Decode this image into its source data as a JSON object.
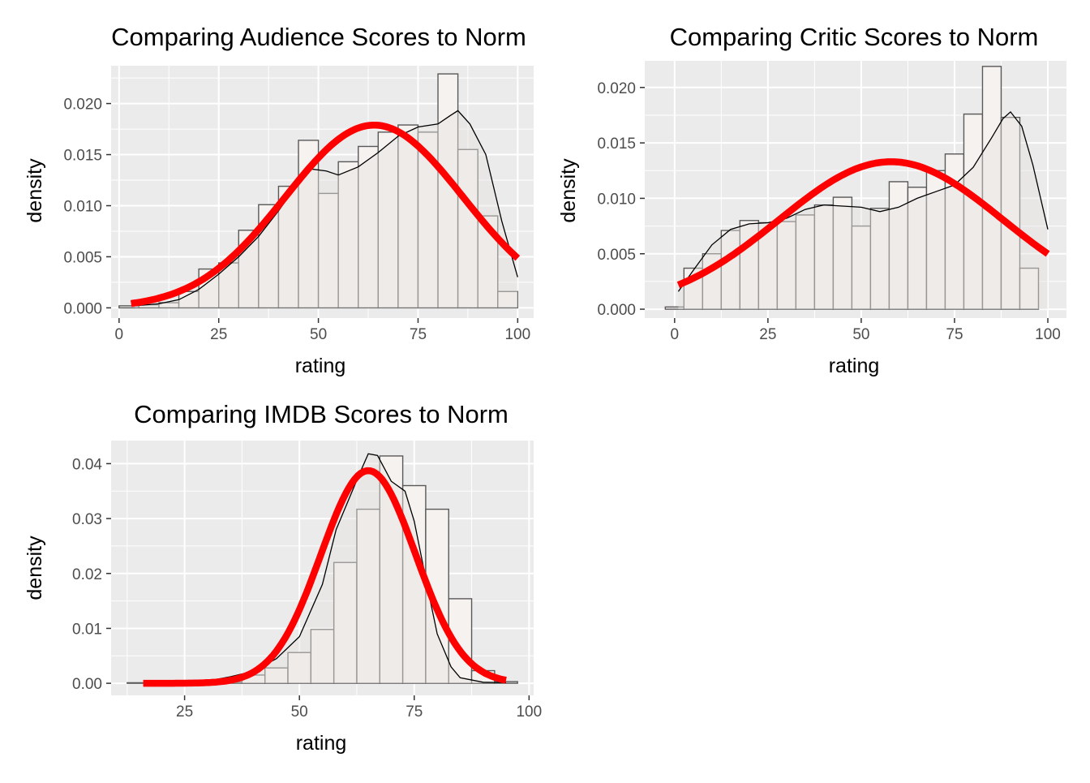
{
  "colors": {
    "panel_bg": "#EBEBEB",
    "grid": "#FFFFFF",
    "bar_fill": "#F5F2EF",
    "bar_stroke": "#595959",
    "density_line": "#000000",
    "density_fill": "#E6E3E0",
    "normal_curve": "#FF0000",
    "tick_text": "#4D4D4D"
  },
  "chart_data": [
    {
      "type": "bar",
      "title": "Comparing Audience Scores to Norm",
      "xlabel": "rating",
      "ylabel": "density",
      "xlim": [
        -2,
        104
      ],
      "ylim": [
        -0.001,
        0.0237
      ],
      "x_ticks": [
        0,
        25,
        50,
        75,
        100
      ],
      "y_ticks": [
        0.0,
        0.005,
        0.01,
        0.015,
        0.02
      ],
      "y_tick_labels": [
        "0.000",
        "0.005",
        "0.010",
        "0.015",
        "0.020"
      ],
      "grid": true,
      "bins": {
        "start": 0,
        "width": 5,
        "values": [
          0.0002,
          0.0003,
          0.0005,
          0.0016,
          0.0038,
          0.0044,
          0.0076,
          0.0101,
          0.0119,
          0.0164,
          0.0112,
          0.0143,
          0.0158,
          0.0172,
          0.0179,
          0.0172,
          0.0229,
          0.0155,
          0.009,
          0.0016
        ]
      },
      "density_curve": {
        "x": [
          4,
          10,
          15,
          20,
          25,
          30,
          35,
          40,
          45,
          48,
          52,
          55,
          60,
          65,
          70,
          75,
          80,
          83,
          85,
          88,
          92,
          96,
          100
        ],
        "y": [
          0.0002,
          0.0004,
          0.0008,
          0.0018,
          0.0033,
          0.005,
          0.007,
          0.0095,
          0.0122,
          0.0136,
          0.0134,
          0.013,
          0.0138,
          0.0152,
          0.0168,
          0.0177,
          0.018,
          0.0188,
          0.0193,
          0.018,
          0.015,
          0.0085,
          0.003
        ]
      },
      "normal_curve": {
        "mean": 64,
        "sd": 22.3,
        "x_from": 3,
        "x_to": 100
      }
    },
    {
      "type": "bar",
      "title": "Comparing Critic Scores to Norm",
      "xlabel": "rating",
      "ylabel": "density",
      "xlim": [
        -8,
        105
      ],
      "ylim": [
        -0.0008,
        0.0224
      ],
      "x_ticks": [
        0,
        25,
        50,
        75,
        100
      ],
      "y_ticks": [
        0.0,
        0.005,
        0.01,
        0.015,
        0.02
      ],
      "y_tick_labels": [
        "0.000",
        "0.005",
        "0.010",
        "0.015",
        "0.020"
      ],
      "grid": true,
      "bins": {
        "start": -2.5,
        "width": 5,
        "values": [
          0.0002,
          0.0037,
          0.005,
          0.0071,
          0.008,
          0.0078,
          0.0079,
          0.0085,
          0.0094,
          0.0101,
          0.0075,
          0.0091,
          0.0115,
          0.011,
          0.0125,
          0.014,
          0.0176,
          0.0219,
          0.0173,
          0.0037
        ]
      },
      "density_curve": {
        "x": [
          1,
          5,
          10,
          15,
          20,
          25,
          30,
          35,
          40,
          45,
          50,
          55,
          60,
          65,
          70,
          75,
          80,
          85,
          88,
          90,
          93,
          96,
          100
        ],
        "y": [
          0.0016,
          0.0035,
          0.0058,
          0.0072,
          0.0077,
          0.0078,
          0.0082,
          0.009,
          0.0094,
          0.0093,
          0.0092,
          0.0088,
          0.0092,
          0.01,
          0.0106,
          0.0112,
          0.0128,
          0.0155,
          0.0172,
          0.0178,
          0.0165,
          0.013,
          0.0072
        ]
      },
      "normal_curve": {
        "mean": 58,
        "sd": 30,
        "x_from": 1,
        "x_to": 100
      }
    },
    {
      "type": "bar",
      "title": "Comparing IMDB Scores to Norm",
      "xlabel": "rating",
      "ylabel": "density",
      "xlim": [
        9,
        101
      ],
      "ylim": [
        -0.0022,
        0.0442
      ],
      "x_ticks": [
        25,
        50,
        75,
        100
      ],
      "y_ticks": [
        0.0,
        0.01,
        0.02,
        0.03,
        0.04
      ],
      "y_tick_labels": [
        "0.00",
        "0.01",
        "0.02",
        "0.03",
        "0.04"
      ],
      "grid": true,
      "bins": {
        "start": 12.5,
        "width": 5,
        "values": [
          0.0001,
          0.0001,
          0.0001,
          0.0001,
          0.0002,
          0.0015,
          0.0028,
          0.0056,
          0.0098,
          0.022,
          0.0317,
          0.0414,
          0.036,
          0.0317,
          0.0154,
          0.0023,
          0.0003
        ]
      },
      "density_curve": {
        "x": [
          20,
          30,
          35,
          40,
          45,
          50,
          55,
          58,
          60,
          63,
          65,
          67,
          70,
          73,
          75,
          78,
          80,
          83,
          85,
          90,
          95
        ],
        "y": [
          0.0001,
          0.0004,
          0.0012,
          0.0022,
          0.0045,
          0.0085,
          0.018,
          0.028,
          0.032,
          0.038,
          0.0418,
          0.0415,
          0.0368,
          0.035,
          0.0295,
          0.017,
          0.009,
          0.003,
          0.001,
          0.0002,
          0.0001
        ]
      },
      "normal_curve": {
        "mean": 65,
        "sd": 10.3,
        "x_from": 16,
        "x_to": 95
      }
    }
  ]
}
